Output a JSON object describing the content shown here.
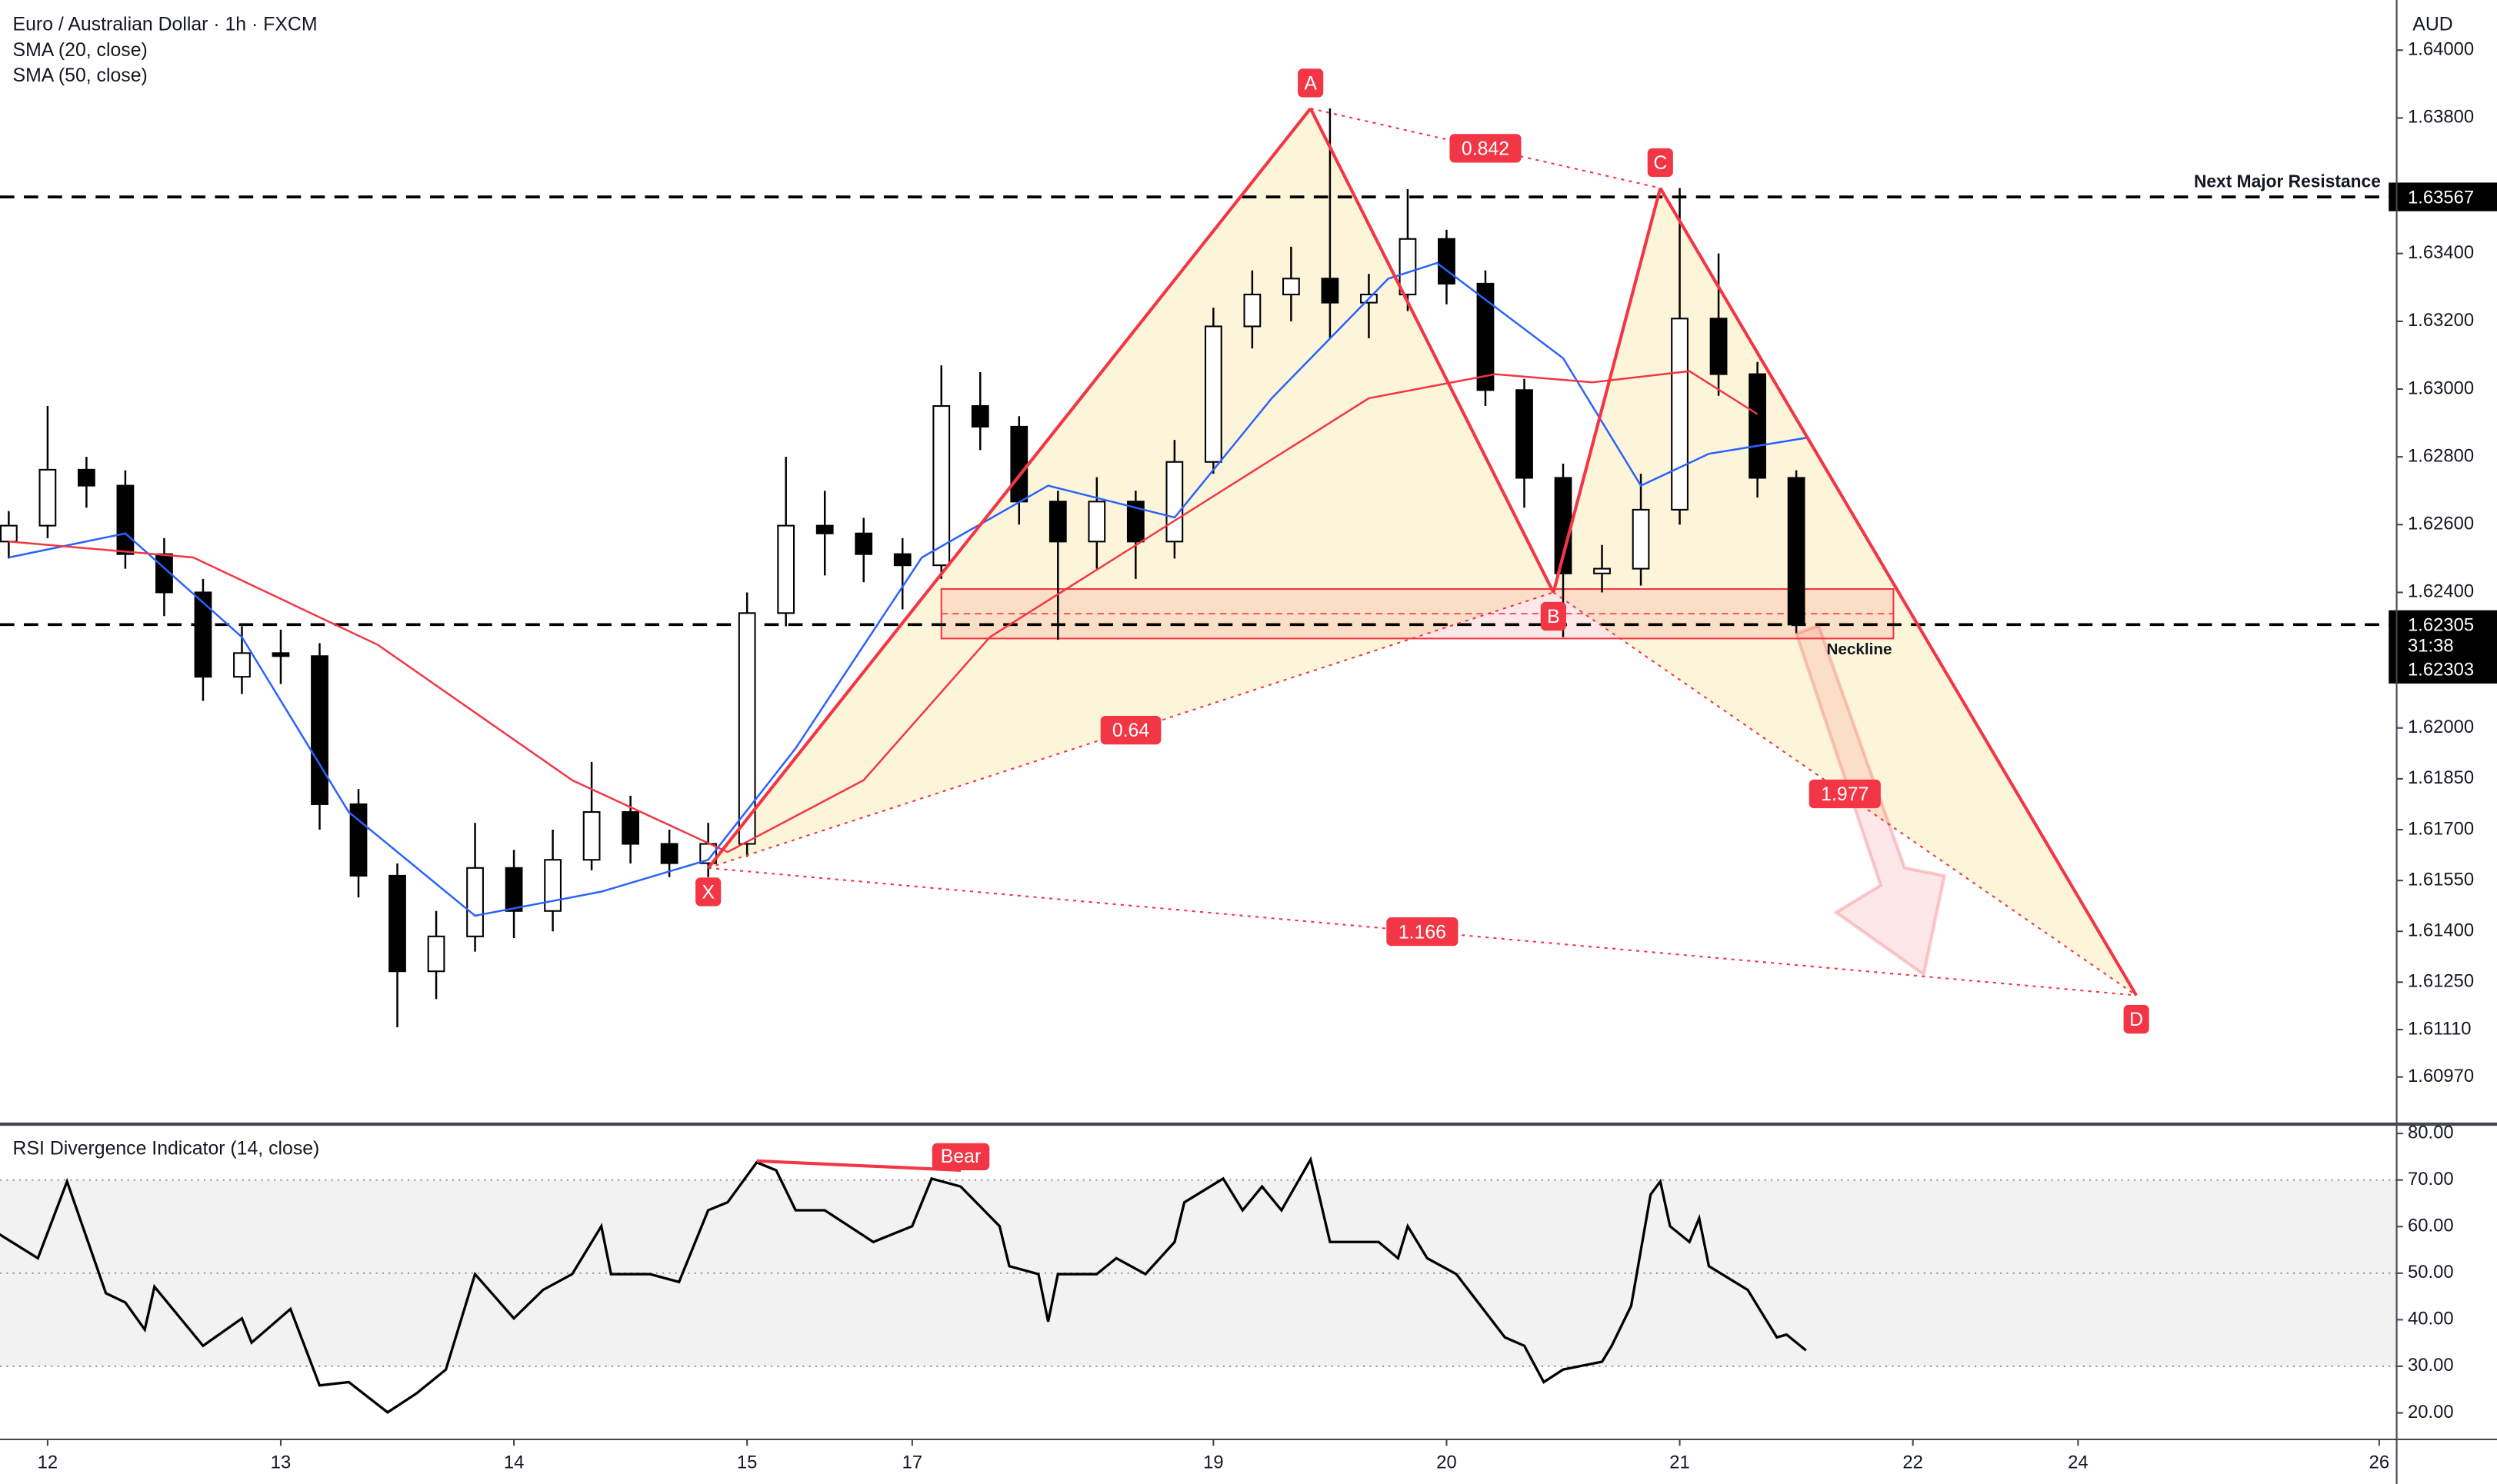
{
  "chart_data": [
    {
      "type": "candlestick",
      "title": "Euro / Australian Dollar · 1h · FXCM",
      "currency": "AUD",
      "x": [
        -4,
        0,
        4,
        8,
        12,
        16,
        20,
        24,
        28,
        32,
        36,
        40,
        44,
        48,
        52,
        56,
        60,
        64,
        68,
        72,
        76,
        80,
        84,
        88,
        92,
        96,
        100,
        104,
        108,
        112,
        116,
        120,
        124,
        128,
        132,
        136,
        140,
        144,
        148,
        152,
        156,
        160,
        164,
        168,
        172,
        176,
        180
      ],
      "open": [
        1.6255,
        1.62597,
        1.62762,
        1.62715,
        1.62513,
        1.624,
        1.62151,
        1.62221,
        1.62212,
        1.61775,
        1.61564,
        1.61282,
        1.61385,
        1.61587,
        1.6146,
        1.61611,
        1.61752,
        1.61658,
        1.61601,
        1.61658,
        1.62339,
        1.62597,
        1.62574,
        1.62513,
        1.6248,
        1.6295,
        1.62889,
        1.62668,
        1.6255,
        1.62668,
        1.6255,
        1.62785,
        1.63185,
        1.63279,
        1.63326,
        1.63255,
        1.63279,
        1.63443,
        1.63311,
        1.62997,
        1.62738,
        1.62456,
        1.6247,
        1.62644,
        1.63208,
        1.63044,
        1.62738
      ],
      "high": [
        1.6264,
        1.6295,
        1.628,
        1.6276,
        1.6256,
        1.6244,
        1.623,
        1.6229,
        1.6225,
        1.6182,
        1.616,
        1.6146,
        1.6172,
        1.6164,
        1.617,
        1.619,
        1.618,
        1.617,
        1.6172,
        1.624,
        1.628,
        1.627,
        1.6262,
        1.6256,
        1.6307,
        1.6305,
        1.6292,
        1.627,
        1.6274,
        1.627,
        1.6285,
        1.6324,
        1.6335,
        1.6342,
        1.63828,
        1.6334,
        1.6359,
        1.6347,
        1.6335,
        1.6303,
        1.6278,
        1.6254,
        1.6275,
        1.63593,
        1.634,
        1.6308,
        1.6276
      ],
      "low": [
        1.625,
        1.6256,
        1.6265,
        1.6247,
        1.6233,
        1.6208,
        1.621,
        1.6213,
        1.617,
        1.615,
        1.61117,
        1.612,
        1.6134,
        1.6138,
        1.614,
        1.6158,
        1.616,
        1.6156,
        1.6156,
        1.6162,
        1.623,
        1.6245,
        1.6243,
        1.6235,
        1.6244,
        1.6282,
        1.626,
        1.6226,
        1.6247,
        1.6244,
        1.625,
        1.6275,
        1.6312,
        1.632,
        1.6315,
        1.6315,
        1.6323,
        1.6325,
        1.6295,
        1.6265,
        1.62268,
        1.624,
        1.6242,
        1.626,
        1.6298,
        1.6268,
        1.6228
      ],
      "close": [
        1.62597,
        1.62762,
        1.62715,
        1.62513,
        1.624,
        1.62151,
        1.62221,
        1.62212,
        1.61775,
        1.61564,
        1.61282,
        1.61385,
        1.61587,
        1.6146,
        1.61611,
        1.61752,
        1.61658,
        1.61601,
        1.61658,
        1.62339,
        1.62597,
        1.62574,
        1.62513,
        1.6248,
        1.6295,
        1.62889,
        1.62668,
        1.6255,
        1.62668,
        1.6255,
        1.62785,
        1.63185,
        1.63279,
        1.63326,
        1.63255,
        1.63279,
        1.63443,
        1.63311,
        1.62997,
        1.62738,
        1.62456,
        1.6247,
        1.62644,
        1.63208,
        1.63044,
        1.62738,
        1.62305
      ],
      "series": [
        {
          "name": "SMA (20, close)",
          "color": "#2962ff",
          "x": [
            -4,
            8,
            20,
            31,
            44,
            57,
            68,
            77,
            90,
            103,
            116,
            126,
            138,
            143,
            156,
            164,
            171,
            181
          ],
          "values": [
            1.62503,
            1.62574,
            1.62268,
            1.61752,
            1.61446,
            1.61517,
            1.61611,
            1.6194,
            1.62503,
            1.62715,
            1.62621,
            1.62973,
            1.63326,
            1.63372,
            1.63091,
            1.62715,
            1.62809,
            1.62856
          ]
        },
        {
          "name": "SMA (50, close)",
          "color": "#f23645",
          "x": [
            -4,
            15,
            34,
            54,
            70,
            84,
            97,
            110,
            123,
            136,
            149,
            159,
            169,
            176
          ],
          "values": [
            1.6255,
            1.62503,
            1.62245,
            1.61846,
            1.61634,
            1.61846,
            1.62268,
            1.62503,
            1.62738,
            1.62973,
            1.63044,
            1.6302,
            1.63053,
            1.62926
          ]
        }
      ],
      "xlim": [
        -4.9,
        241.8
      ],
      "xticks": [
        {
          "value": 0,
          "label": "12"
        },
        {
          "value": 24,
          "label": "13"
        },
        {
          "value": 48,
          "label": "14"
        },
        {
          "value": 72,
          "label": "15"
        },
        {
          "value": 89,
          "label": "17"
        },
        {
          "value": 120,
          "label": "19"
        },
        {
          "value": 144,
          "label": "20"
        },
        {
          "value": 168,
          "label": "21"
        },
        {
          "value": 192,
          "label": "22"
        },
        {
          "value": 209,
          "label": "24"
        },
        {
          "value": 240,
          "label": "26"
        }
      ],
      "ylim": [
        1.60831,
        1.64148
      ],
      "yticks": [
        {
          "value": 1.64,
          "label": "1.64000"
        },
        {
          "value": 1.638,
          "label": "1.63800"
        },
        {
          "value": 1.634,
          "label": "1.63400"
        },
        {
          "value": 1.632,
          "label": "1.63200"
        },
        {
          "value": 1.63,
          "label": "1.63000"
        },
        {
          "value": 1.628,
          "label": "1.62800"
        },
        {
          "value": 1.626,
          "label": "1.62600"
        },
        {
          "value": 1.624,
          "label": "1.62400"
        },
        {
          "value": 1.62,
          "label": "1.62000"
        },
        {
          "value": 1.6185,
          "label": "1.61850"
        },
        {
          "value": 1.617,
          "label": "1.61700"
        },
        {
          "value": 1.6155,
          "label": "1.61550"
        },
        {
          "value": 1.614,
          "label": "1.61400"
        },
        {
          "value": 1.6125,
          "label": "1.61250"
        },
        {
          "value": 1.6111,
          "label": "1.61110"
        },
        {
          "value": 1.6097,
          "label": "1.60970"
        }
      ],
      "pattern": {
        "color": "#f23645",
        "fill": "#fdf3cf",
        "points": [
          {
            "label": "X",
            "x": 68,
            "y": 1.61587
          },
          {
            "label": "A",
            "x": 130,
            "y": 1.63828
          },
          {
            "label": "B",
            "x": 155,
            "y": 1.624
          },
          {
            "label": "C",
            "x": 166,
            "y": 1.63593
          },
          {
            "label": "D",
            "x": 215,
            "y": 1.61211
          }
        ],
        "ratios": [
          {
            "label": "0.842",
            "between": [
              "A",
              "C"
            ]
          },
          {
            "label": "0.64",
            "between": [
              "X",
              "B"
            ]
          },
          {
            "label": "1.166",
            "between": [
              "X",
              "D"
            ]
          },
          {
            "label": "1.977",
            "between": [
              "B",
              "D"
            ]
          }
        ]
      },
      "zone": {
        "x": [
          92,
          190
        ],
        "y": [
          1.62264,
          1.6241
        ]
      },
      "levels": [
        {
          "name": "Next Major Resistance",
          "value": 1.63567
        },
        {
          "name": "Neckline",
          "value": 1.62305
        }
      ],
      "countdown": "31:38",
      "bid": 1.62303
    },
    {
      "type": "line",
      "title": "RSI Divergence Indicator (14, close)",
      "color": "#000000",
      "x": [
        -5,
        -1,
        2,
        6,
        8,
        10,
        11,
        16,
        20,
        21,
        25,
        28,
        31,
        35,
        38,
        41,
        44,
        48,
        51,
        54,
        57,
        58,
        62,
        65,
        68,
        70,
        73,
        75,
        77,
        80,
        85,
        89,
        91,
        94,
        98,
        99,
        102,
        103,
        104,
        108,
        110,
        113,
        116,
        117,
        121,
        123,
        125,
        127,
        130,
        132,
        137,
        139,
        140,
        142,
        145,
        150,
        152,
        154,
        156,
        160,
        161,
        163,
        165,
        166,
        167,
        169,
        170,
        171,
        175,
        176,
        178,
        179,
        181
      ],
      "values": [
        58.4,
        53.2,
        69.7,
        45.7,
        43.7,
        37.9,
        47.1,
        34.4,
        40.3,
        35.1,
        42.3,
        25.9,
        26.6,
        20.1,
        24.2,
        29.3,
        49.8,
        40.3,
        46.4,
        49.8,
        60.1,
        49.8,
        49.8,
        48.1,
        63.5,
        65.2,
        73.8,
        72.1,
        63.5,
        63.5,
        56.7,
        60.1,
        70.3,
        68.6,
        60.1,
        51.5,
        49.8,
        39.6,
        49.8,
        49.8,
        53.2,
        49.8,
        56.7,
        65.2,
        70.3,
        63.5,
        68.6,
        63.5,
        74.4,
        56.7,
        56.7,
        53.2,
        60.1,
        53.2,
        49.8,
        36.2,
        34.4,
        26.6,
        29.3,
        31.0,
        34.4,
        43.0,
        66.9,
        69.7,
        60.1,
        56.7,
        61.8,
        51.5,
        46.4,
        43.0,
        36.2,
        36.8,
        33.4
      ],
      "ylim": [
        14.3,
        82
      ],
      "yticks": [
        {
          "value": 80,
          "label": "80.00"
        },
        {
          "value": 70,
          "label": "70.00"
        },
        {
          "value": 60,
          "label": "60.00"
        },
        {
          "value": 50,
          "label": "50.00"
        },
        {
          "value": 40,
          "label": "40.00"
        },
        {
          "value": 30,
          "label": "30.00"
        },
        {
          "value": 20,
          "label": "20.00"
        }
      ],
      "band": [
        30,
        70
      ],
      "divergence": {
        "label": "Bear",
        "color": "#f23645",
        "x": [
          73,
          94
        ],
        "y": [
          74.1,
          72.1
        ]
      }
    }
  ]
}
